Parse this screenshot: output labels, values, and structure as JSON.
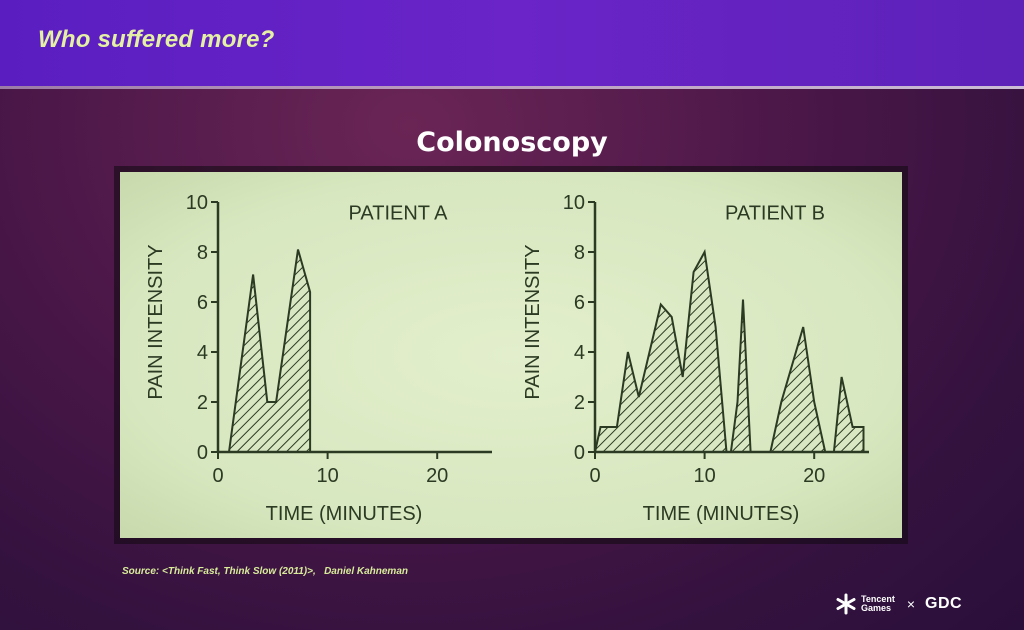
{
  "slide": {
    "title": "Who suffered more?",
    "heading": "Colonoscopy",
    "source": "Source: <Think Fast, Think Slow (2011)>,   Daniel Kahneman",
    "logos": {
      "tencent_line1": "Tencent",
      "tencent_line2": "Games",
      "separator": "×",
      "gdc": "GDC"
    }
  },
  "colors": {
    "ink": "#2b3a22",
    "panel": "#dbe9c4",
    "title_text": "#e4f0a4"
  },
  "chart_data": [
    {
      "type": "area",
      "title": "PATIENT A",
      "xlabel": "TIME (MINUTES)",
      "ylabel": "PAIN INTENSITY",
      "xlim": [
        0,
        25
      ],
      "ylim": [
        0,
        10
      ],
      "xticks": [
        0,
        10,
        20
      ],
      "yticks": [
        0,
        2,
        4,
        6,
        8,
        10
      ],
      "fill": "diagonal hatch",
      "points": [
        [
          1,
          0
        ],
        [
          3.2,
          7.1
        ],
        [
          4.5,
          2
        ],
        [
          5.3,
          2
        ],
        [
          7.3,
          8.1
        ],
        [
          8.4,
          6.4
        ],
        [
          8.4,
          0
        ]
      ]
    },
    {
      "type": "area",
      "title": "PATIENT B",
      "xlabel": "TIME (MINUTES)",
      "ylabel": "PAIN INTENSITY",
      "xlim": [
        0,
        25
      ],
      "ylim": [
        0,
        10
      ],
      "xticks": [
        0,
        10,
        20
      ],
      "yticks": [
        0,
        2,
        4,
        6,
        8,
        10
      ],
      "fill": "diagonal hatch",
      "points": [
        [
          0,
          0
        ],
        [
          0.5,
          1
        ],
        [
          2,
          1
        ],
        [
          3,
          4
        ],
        [
          4,
          2.2
        ],
        [
          6,
          5.9
        ],
        [
          7,
          5.4
        ],
        [
          8,
          3
        ],
        [
          9,
          7.2
        ],
        [
          10,
          8
        ],
        [
          11,
          5
        ],
        [
          12,
          0
        ],
        [
          12.4,
          0
        ],
        [
          13,
          2
        ],
        [
          13.5,
          6.1
        ],
        [
          14.2,
          0
        ],
        [
          16,
          0
        ],
        [
          17,
          2
        ],
        [
          19,
          5
        ],
        [
          20,
          2
        ],
        [
          21,
          0
        ],
        [
          21.8,
          0
        ],
        [
          22.5,
          3
        ],
        [
          23.5,
          1
        ],
        [
          24.5,
          1
        ],
        [
          24.5,
          0
        ]
      ]
    }
  ]
}
